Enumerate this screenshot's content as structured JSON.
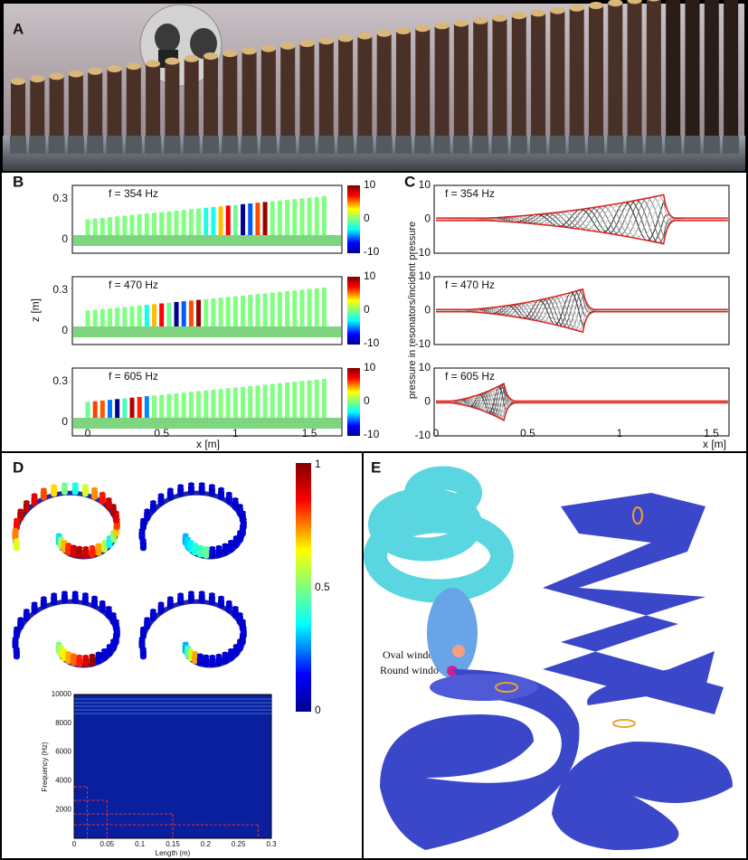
{
  "panels": {
    "A": {
      "label": "A"
    },
    "B": {
      "label": "B",
      "subplots": [
        {
          "annotation": "f = 354 Hz"
        },
        {
          "annotation": "f = 470 Hz"
        },
        {
          "annotation": "f = 605 Hz"
        }
      ],
      "y_axis_label": "z [m]",
      "x_axis_label": "x [m]",
      "y_ticks": [
        "0.3",
        "0"
      ],
      "x_ticks": [
        "0",
        "0.5",
        "1",
        "1.5"
      ],
      "colorbar_ticks": [
        "10",
        "0",
        "-10"
      ]
    },
    "C": {
      "label": "C",
      "subplots": [
        {
          "annotation": "f = 354 Hz"
        },
        {
          "annotation": "f = 470 Hz"
        },
        {
          "annotation": "f = 605 Hz"
        }
      ],
      "y_axis_label": "pressure in resonators/incident pressure",
      "x_axis_label": "x [m]",
      "y_ticks": [
        "10",
        "0",
        "-10"
      ],
      "x_ticks": [
        "0",
        "0.5",
        "1",
        "1.5"
      ]
    },
    "D": {
      "label": "D",
      "colorbar_ticks": [
        "1",
        "0.5",
        "0"
      ],
      "inset": {
        "y_axis_label": "Frequency (Hz)",
        "x_axis_label": "Length (m)",
        "y_ticks": [
          "10000",
          "8000",
          "6000",
          "4000",
          "2000"
        ],
        "x_ticks": [
          "0",
          "0.05",
          "0.1",
          "0.15",
          "0.2",
          "0.25",
          "0.3"
        ]
      }
    },
    "E": {
      "label": "E",
      "annotations": [
        "Oval window",
        "Round window"
      ]
    }
  }
}
